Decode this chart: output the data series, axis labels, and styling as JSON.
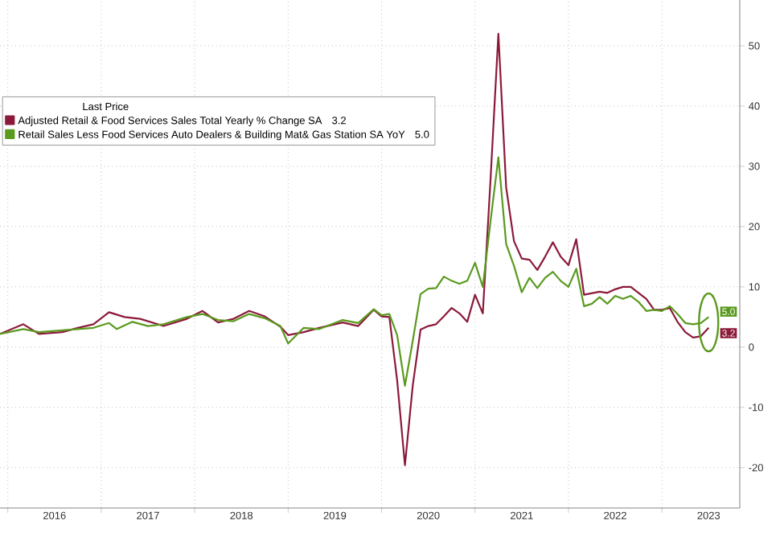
{
  "chart_data": {
    "type": "line",
    "legend_title": "Last Price",
    "legend": "top left",
    "grid": true,
    "xlim": [
      "2015-12",
      "2023-11"
    ],
    "xticks": [
      {
        "value": "2016-01",
        "label": null
      },
      {
        "value": "2016-07",
        "label": "2016"
      },
      {
        "value": "2017-01",
        "label": null
      },
      {
        "value": "2017-07",
        "label": "2017"
      },
      {
        "value": "2018-01",
        "label": null
      },
      {
        "value": "2018-07",
        "label": "2018"
      },
      {
        "value": "2019-01",
        "label": null
      },
      {
        "value": "2019-07",
        "label": "2019"
      },
      {
        "value": "2020-01",
        "label": null
      },
      {
        "value": "2020-07",
        "label": "2020"
      },
      {
        "value": "2021-01",
        "label": null
      },
      {
        "value": "2021-07",
        "label": "2021"
      },
      {
        "value": "2022-01",
        "label": null
      },
      {
        "value": "2022-07",
        "label": "2022"
      },
      {
        "value": "2023-01",
        "label": null
      },
      {
        "value": "2023-07",
        "label": "2023"
      }
    ],
    "ylim": [
      -26.7,
      57.6
    ],
    "yticks": [
      -20,
      -10,
      0,
      10,
      20,
      30,
      40,
      50
    ],
    "series": [
      {
        "name": "Adjusted Retail & Food Services Sales Total Yearly % Change SA",
        "color": "#8b1a3a",
        "x": [
          "2015-12",
          "2016-03",
          "2016-05",
          "2016-08",
          "2016-10",
          "2016-12",
          "2017-02",
          "2017-04",
          "2017-06",
          "2017-09",
          "2017-12",
          "2018-02",
          "2018-04",
          "2018-06",
          "2018-08",
          "2018-10",
          "2018-12",
          "2019-01",
          "2019-03",
          "2019-05",
          "2019-08",
          "2019-10",
          "2019-12",
          "2020-01",
          "2020-02",
          "2020-03",
          "2020-04",
          "2020-05",
          "2020-06",
          "2020-07",
          "2020-08",
          "2020-09",
          "2020-10",
          "2020-11",
          "2020-12",
          "2021-01",
          "2021-02",
          "2021-03",
          "2021-04",
          "2021-05",
          "2021-06",
          "2021-07",
          "2021-08",
          "2021-09",
          "2021-10",
          "2021-11",
          "2021-12",
          "2022-01",
          "2022-02",
          "2022-03",
          "2022-05",
          "2022-06",
          "2022-07",
          "2022-08",
          "2022-09",
          "2022-10",
          "2022-11",
          "2022-12",
          "2023-01",
          "2023-02",
          "2023-03",
          "2023-04",
          "2023-05",
          "2023-06",
          "2023-07"
        ],
        "values": [
          2.2,
          3.8,
          2.2,
          2.5,
          3.2,
          3.8,
          5.8,
          5.0,
          4.7,
          3.5,
          4.7,
          6.0,
          4.1,
          4.7,
          6.0,
          5.1,
          3.4,
          2.0,
          2.5,
          3.2,
          4.1,
          3.5,
          6.2,
          5.1,
          5.0,
          -5.5,
          -19.6,
          -6.4,
          2.9,
          3.5,
          3.8,
          5.1,
          6.5,
          5.6,
          4.2,
          8.7,
          5.6,
          28,
          52,
          26.5,
          17.6,
          14.7,
          14.5,
          12.8,
          15,
          17.4,
          15,
          13.6,
          17.9,
          8.7,
          9.2,
          9.0,
          9.6,
          10.0,
          10.0,
          9.0,
          8.0,
          6.2,
          6.2,
          6.5,
          4.2,
          2.5,
          1.6,
          1.8,
          3.2
        ],
        "value_labels": [
          null,
          null,
          null,
          null,
          null,
          null,
          null,
          null,
          null,
          null,
          null,
          null,
          null,
          null,
          null,
          null,
          null,
          null,
          null,
          null,
          null,
          null,
          null,
          null,
          null,
          null,
          null,
          null,
          null,
          null,
          null,
          null,
          null,
          null,
          null,
          null,
          null,
          null,
          null,
          null,
          null,
          null,
          null,
          null,
          null,
          null,
          null,
          null,
          null,
          null,
          null,
          null,
          null,
          null,
          null,
          null,
          null,
          null,
          null,
          null,
          null,
          null,
          null,
          null,
          "3.2"
        ]
      },
      {
        "name": "Retail Sales Less Food Services Auto Dealers & Building Mat& Gas Station SA YoY",
        "color": "#5a9a1e",
        "x": [
          "2015-12",
          "2016-03",
          "2016-05",
          "2016-08",
          "2016-10",
          "2016-12",
          "2017-02",
          "2017-03",
          "2017-05",
          "2017-07",
          "2017-09",
          "2017-12",
          "2018-02",
          "2018-04",
          "2018-06",
          "2018-08",
          "2018-10",
          "2018-12",
          "2019-01",
          "2019-03",
          "2019-05",
          "2019-08",
          "2019-10",
          "2019-12",
          "2020-01",
          "2020-02",
          "2020-03",
          "2020-04",
          "2020-05",
          "2020-06",
          "2020-07",
          "2020-08",
          "2020-09",
          "2020-10",
          "2020-11",
          "2020-12",
          "2021-01",
          "2021-02",
          "2021-03",
          "2021-04",
          "2021-05",
          "2021-06",
          "2021-07",
          "2021-08",
          "2021-09",
          "2021-10",
          "2021-11",
          "2021-12",
          "2022-01",
          "2022-02",
          "2022-03",
          "2022-04",
          "2022-05",
          "2022-06",
          "2022-07",
          "2022-08",
          "2022-09",
          "2022-10",
          "2022-11",
          "2022-12",
          "2023-01",
          "2023-02",
          "2023-03",
          "2023-04",
          "2023-05",
          "2023-06",
          "2023-07"
        ],
        "values": [
          2.2,
          3.0,
          2.5,
          2.8,
          3.0,
          3.2,
          4.0,
          3.0,
          4.2,
          3.5,
          3.8,
          5.0,
          5.5,
          4.5,
          4.3,
          5.5,
          4.8,
          3.5,
          0.6,
          3.2,
          3.0,
          4.5,
          4.0,
          6.3,
          5.3,
          5.5,
          2.0,
          -6.4,
          1.0,
          8.8,
          9.7,
          9.8,
          11.7,
          11.0,
          10.5,
          11.0,
          14.0,
          10.0,
          21,
          31.5,
          17.1,
          13.5,
          9.1,
          11.5,
          9.8,
          11.5,
          12.5,
          11.0,
          10.0,
          13.0,
          6.8,
          7.2,
          8.3,
          7.2,
          8.5,
          8.0,
          8.5,
          7.5,
          6.0,
          6.2,
          6.0,
          6.8,
          5.5,
          4.0,
          3.8,
          4.0,
          5.0
        ],
        "value_labels": [
          null,
          null,
          null,
          null,
          null,
          null,
          null,
          null,
          null,
          null,
          null,
          null,
          null,
          null,
          null,
          null,
          null,
          null,
          null,
          null,
          null,
          null,
          null,
          null,
          null,
          null,
          null,
          null,
          null,
          null,
          null,
          null,
          null,
          null,
          null,
          null,
          null,
          null,
          null,
          null,
          null,
          null,
          null,
          null,
          null,
          null,
          null,
          null,
          null,
          null,
          null,
          null,
          null,
          null,
          null,
          null,
          null,
          null,
          null,
          null,
          null,
          null,
          null,
          null,
          null,
          null,
          "5.0"
        ]
      }
    ]
  }
}
